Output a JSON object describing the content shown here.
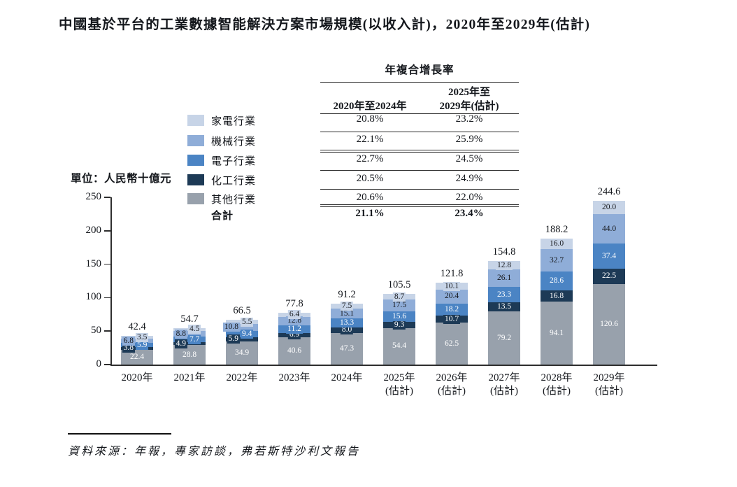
{
  "title": "中國基於平台的工業數據智能解決方案市場規模(以收入計)，2020年至2029年(估計)",
  "unit_label": "單位：人民幣十億元",
  "source": "資料來源：年報，專家訪談，弗若斯特沙利文報告",
  "colors": {
    "home_appliance": "#c7d4e7",
    "machinery": "#8fadd8",
    "electronics": "#4b84c4",
    "chemical": "#1d3a56",
    "other": "#98a1ac"
  },
  "cagr_table": {
    "title": "年複合增長率",
    "col1_header": "2020年至2024年",
    "col2_header_line1": "2025年至",
    "col2_header_line2": "2029年(估計)",
    "rows": [
      {
        "label": "家電行業",
        "series_key": "home_appliance",
        "bold": false,
        "v2020_2024": "20.8%",
        "v2025_2029": "23.2%"
      },
      {
        "label": "機械行業",
        "series_key": "machinery",
        "bold": false,
        "v2020_2024": "22.1%",
        "v2025_2029": "25.9%"
      },
      {
        "label": "電子行業",
        "series_key": "electronics",
        "bold": false,
        "v2020_2024": "22.7%",
        "v2025_2029": "24.5%"
      },
      {
        "label": "化工行業",
        "series_key": "chemical",
        "bold": false,
        "v2020_2024": "20.5%",
        "v2025_2029": "24.9%"
      },
      {
        "label": "其他行業",
        "series_key": "other",
        "bold": false,
        "v2020_2024": "20.6%",
        "v2025_2029": "22.0%"
      },
      {
        "label": "合計",
        "series_key": null,
        "bold": true,
        "v2020_2024": "21.1%",
        "v2025_2029": "23.4%"
      }
    ]
  },
  "chart_data": {
    "type": "bar",
    "stacked": true,
    "title": "中國基於平台的工業數據智能解決方案市場規模(以收入計)，2020年至2029年(估計)",
    "ylabel": "單位：人民幣十億元",
    "ylim": [
      0,
      250
    ],
    "yticks": [
      0,
      50,
      100,
      150,
      200,
      250
    ],
    "grid": false,
    "legend_position": "left",
    "categories": [
      {
        "line1": "2020年",
        "line2": ""
      },
      {
        "line1": "2021年",
        "line2": ""
      },
      {
        "line1": "2022年",
        "line2": ""
      },
      {
        "line1": "2023年",
        "line2": ""
      },
      {
        "line1": "2024年",
        "line2": ""
      },
      {
        "line1": "2025年",
        "line2": "(估計)"
      },
      {
        "line1": "2026年",
        "line2": "(估計)"
      },
      {
        "line1": "2027年",
        "line2": "(估計)"
      },
      {
        "line1": "2028年",
        "line2": "(估計)"
      },
      {
        "line1": "2029年",
        "line2": "(估計)"
      }
    ],
    "series": [
      {
        "name": "家電行業",
        "key": "home_appliance",
        "values": [
          3.5,
          4.5,
          5.5,
          6.4,
          7.5,
          8.7,
          10.1,
          12.8,
          16.0,
          20.0
        ]
      },
      {
        "name": "機械行業",
        "key": "machinery",
        "values": [
          6.8,
          8.8,
          10.8,
          12.8,
          15.1,
          17.5,
          20.4,
          26.1,
          32.7,
          44.0
        ]
      },
      {
        "name": "電子行業",
        "key": "electronics",
        "values": [
          5.9,
          7.7,
          9.4,
          11.2,
          13.3,
          15.6,
          18.2,
          23.3,
          28.6,
          37.4
        ]
      },
      {
        "name": "化工行業",
        "key": "chemical",
        "values": [
          3.8,
          4.9,
          5.9,
          6.9,
          8.0,
          9.3,
          10.7,
          13.5,
          16.8,
          22.5
        ]
      },
      {
        "name": "其他行業",
        "key": "other",
        "values": [
          22.4,
          28.8,
          34.9,
          40.6,
          47.3,
          54.4,
          62.5,
          79.2,
          94.1,
          120.6
        ]
      }
    ],
    "totals": [
      42.4,
      54.7,
      66.5,
      77.8,
      91.2,
      105.5,
      121.8,
      154.8,
      188.2,
      244.6
    ]
  }
}
